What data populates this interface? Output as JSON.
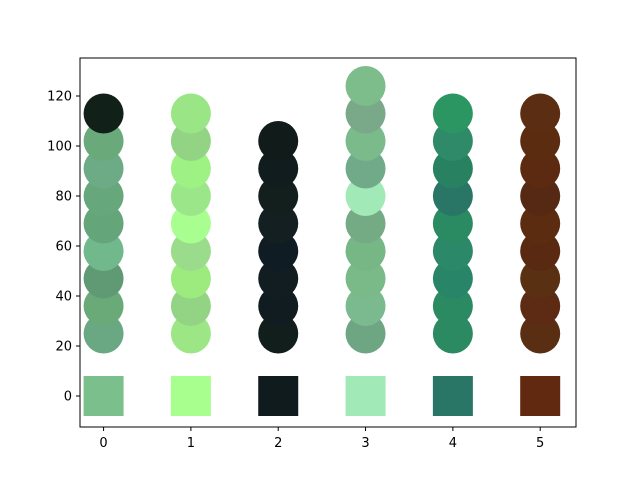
{
  "chart_data": {
    "type": "scatter",
    "xlim": [
      -0.27,
      5.41
    ],
    "ylim": [
      -12.4,
      135.2
    ],
    "x_ticks": [
      0,
      1,
      2,
      3,
      4,
      5
    ],
    "y_ticks": [
      0,
      20,
      40,
      60,
      80,
      100,
      120
    ],
    "grid": false,
    "legend": "none",
    "columns": [
      {
        "x": 0,
        "swatch": "#7bbf8d",
        "points": [
          {
            "y": 25,
            "color": "#6aa883"
          },
          {
            "y": 36,
            "color": "#6aaa78"
          },
          {
            "y": 47,
            "color": "#5f9a74"
          },
          {
            "y": 58,
            "color": "#72b88d"
          },
          {
            "y": 69,
            "color": "#65a57a"
          },
          {
            "y": 80,
            "color": "#66a87b"
          },
          {
            "y": 91,
            "color": "#6dab86"
          },
          {
            "y": 102,
            "color": "#6aaa7a"
          },
          {
            "y": 113,
            "color": "#112019"
          }
        ]
      },
      {
        "x": 1,
        "swatch": "#a8ff8e",
        "points": [
          {
            "y": 25,
            "color": "#9ce686"
          },
          {
            "y": 36,
            "color": "#93d484"
          },
          {
            "y": 47,
            "color": "#9deb7f"
          },
          {
            "y": 58,
            "color": "#9bdc8c"
          },
          {
            "y": 69,
            "color": "#a8fe8e"
          },
          {
            "y": 80,
            "color": "#9ce68a"
          },
          {
            "y": 91,
            "color": "#9ef284"
          },
          {
            "y": 102,
            "color": "#93d484"
          },
          {
            "y": 113,
            "color": "#9ae585"
          }
        ]
      },
      {
        "x": 2,
        "swatch": "#101b1e",
        "points": [
          {
            "y": 25,
            "color": "#121e1b"
          },
          {
            "y": 36,
            "color": "#111c20"
          },
          {
            "y": 47,
            "color": "#121d21"
          },
          {
            "y": 58,
            "color": "#101c24"
          },
          {
            "y": 69,
            "color": "#131f20"
          },
          {
            "y": 80,
            "color": "#131f1d"
          },
          {
            "y": 91,
            "color": "#111c1e"
          },
          {
            "y": 102,
            "color": "#101b1a"
          }
        ]
      },
      {
        "x": 3,
        "swatch": "#a2e9b8",
        "points": [
          {
            "y": 25,
            "color": "#6ea582"
          },
          {
            "y": 36,
            "color": "#7aba8e"
          },
          {
            "y": 47,
            "color": "#7aba89"
          },
          {
            "y": 58,
            "color": "#77b786"
          },
          {
            "y": 69,
            "color": "#75ab84"
          },
          {
            "y": 80,
            "color": "#a2e9b8"
          },
          {
            "y": 91,
            "color": "#71aa88"
          },
          {
            "y": 102,
            "color": "#7aba8b"
          },
          {
            "y": 113,
            "color": "#7aa98a"
          },
          {
            "y": 124,
            "color": "#7cbd8b"
          }
        ]
      },
      {
        "x": 4,
        "swatch": "#297566",
        "points": [
          {
            "y": 25,
            "color": "#2b8a62"
          },
          {
            "y": 36,
            "color": "#2b8a62"
          },
          {
            "y": 47,
            "color": "#298567"
          },
          {
            "y": 58,
            "color": "#2b8868"
          },
          {
            "y": 69,
            "color": "#2a8b62"
          },
          {
            "y": 80,
            "color": "#297566"
          },
          {
            "y": 91,
            "color": "#288262"
          },
          {
            "y": 102,
            "color": "#2e8a69"
          },
          {
            "y": 113,
            "color": "#2c9663"
          }
        ]
      },
      {
        "x": 5,
        "swatch": "#612a10",
        "points": [
          {
            "y": 25,
            "color": "#5a2e13"
          },
          {
            "y": 36,
            "color": "#5d2a14"
          },
          {
            "y": 47,
            "color": "#5a3013"
          },
          {
            "y": 58,
            "color": "#5a2912"
          },
          {
            "y": 69,
            "color": "#5c2c11"
          },
          {
            "y": 80,
            "color": "#552913"
          },
          {
            "y": 91,
            "color": "#5b2a10"
          },
          {
            "y": 102,
            "color": "#5c2c11"
          },
          {
            "y": 113,
            "color": "#5b2d12"
          }
        ]
      }
    ]
  }
}
